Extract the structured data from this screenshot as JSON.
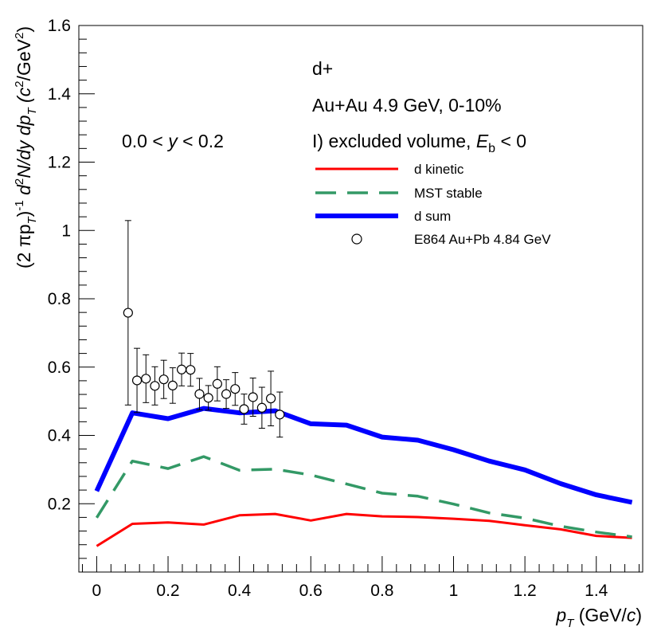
{
  "chart_data": {
    "type": "line",
    "title": "",
    "xlabel": {
      "main": "p",
      "sub": "T",
      "unit_pre": " (GeV/",
      "unit_var": "c",
      "unit_post": ")"
    },
    "ylabel": {
      "p1": "(2 πp",
      "p1_sub": "T",
      "p2": ")",
      "p2_sup": "-1",
      "p3": " d",
      "p3_sup": "2",
      "p4": "N/dy dp",
      "p4_sub": "T",
      "p5": " (c",
      "p5_sup": "2",
      "p6": "/GeV",
      "p6_sup": "2",
      "p7": ")"
    },
    "xlim": [
      -0.05,
      1.53
    ],
    "ylim": [
      0.0,
      1.6
    ],
    "x_ticks": [
      0,
      0.2,
      0.4,
      0.6,
      0.8,
      1,
      1.2,
      1.4
    ],
    "x_tick_labels": [
      "0",
      "0.2",
      "0.4",
      "0.6",
      "0.8",
      "1",
      "1.2",
      "1.4"
    ],
    "y_ticks": [
      0.2,
      0.4,
      0.6,
      0.8,
      1.0,
      1.2,
      1.4,
      1.6
    ],
    "y_tick_labels": [
      "0.2",
      "0.4",
      "0.6",
      "0.8",
      "1",
      "1.2",
      "1.4",
      "1.6"
    ],
    "annotations": {
      "rapidity": {
        "pre": "0.0 < ",
        "var": "y",
        "post": " < 0.2"
      },
      "species": "d+",
      "system": "Au+Au 4.9 GeV, 0-10%",
      "model": {
        "pre": "I) excluded volume, ",
        "var": "E",
        "sub": "b",
        "post": " < 0"
      }
    },
    "series": [
      {
        "name": "d kinetic",
        "style": "line",
        "color": "#ff0000",
        "x": [
          0,
          0.1,
          0.2,
          0.3,
          0.4,
          0.5,
          0.6,
          0.7,
          0.8,
          0.9,
          1.0,
          1.1,
          1.2,
          1.3,
          1.4,
          1.5
        ],
        "y": [
          0.076,
          0.141,
          0.145,
          0.139,
          0.166,
          0.17,
          0.151,
          0.17,
          0.163,
          0.161,
          0.156,
          0.15,
          0.137,
          0.125,
          0.106,
          0.1
        ]
      },
      {
        "name": "MST stable",
        "style": "dashed",
        "color": "#339966",
        "x": [
          0,
          0.1,
          0.2,
          0.3,
          0.4,
          0.5,
          0.6,
          0.7,
          0.8,
          0.9,
          1.0,
          1.1,
          1.2,
          1.3,
          1.4,
          1.5
        ],
        "y": [
          0.159,
          0.325,
          0.303,
          0.338,
          0.298,
          0.301,
          0.284,
          0.258,
          0.231,
          0.222,
          0.199,
          0.173,
          0.158,
          0.134,
          0.117,
          0.103
        ]
      },
      {
        "name": "d sum",
        "style": "thick",
        "color": "#0000ff",
        "x": [
          0,
          0.1,
          0.2,
          0.3,
          0.4,
          0.5,
          0.6,
          0.7,
          0.8,
          0.9,
          1.0,
          1.1,
          1.2,
          1.3,
          1.4,
          1.5
        ],
        "y": [
          0.237,
          0.466,
          0.449,
          0.479,
          0.466,
          0.472,
          0.434,
          0.43,
          0.395,
          0.386,
          0.358,
          0.325,
          0.299,
          0.259,
          0.226,
          0.204
        ]
      },
      {
        "name": "E864 Au+Pb 4.84 GeV",
        "style": "markers",
        "color": "#000000",
        "x": [
          0.088,
          0.113,
          0.138,
          0.163,
          0.188,
          0.213,
          0.238,
          0.263,
          0.288,
          0.313,
          0.338,
          0.363,
          0.388,
          0.413,
          0.438,
          0.463,
          0.488,
          0.513
        ],
        "y": [
          0.759,
          0.561,
          0.566,
          0.545,
          0.564,
          0.546,
          0.593,
          0.592,
          0.521,
          0.51,
          0.551,
          0.521,
          0.536,
          0.477,
          0.512,
          0.481,
          0.508,
          0.461
        ],
        "err": [
          0.27,
          0.094,
          0.07,
          0.056,
          0.056,
          0.052,
          0.048,
          0.048,
          0.046,
          0.036,
          0.05,
          0.042,
          0.048,
          0.044,
          0.056,
          0.06,
          0.08,
          0.066
        ]
      }
    ],
    "legend": [
      {
        "label": "d kinetic",
        "series": 0
      },
      {
        "label": "MST stable",
        "series": 1
      },
      {
        "label": "d sum",
        "series": 2
      },
      {
        "label": "E864 Au+Pb 4.84 GeV",
        "series": 3
      }
    ]
  }
}
